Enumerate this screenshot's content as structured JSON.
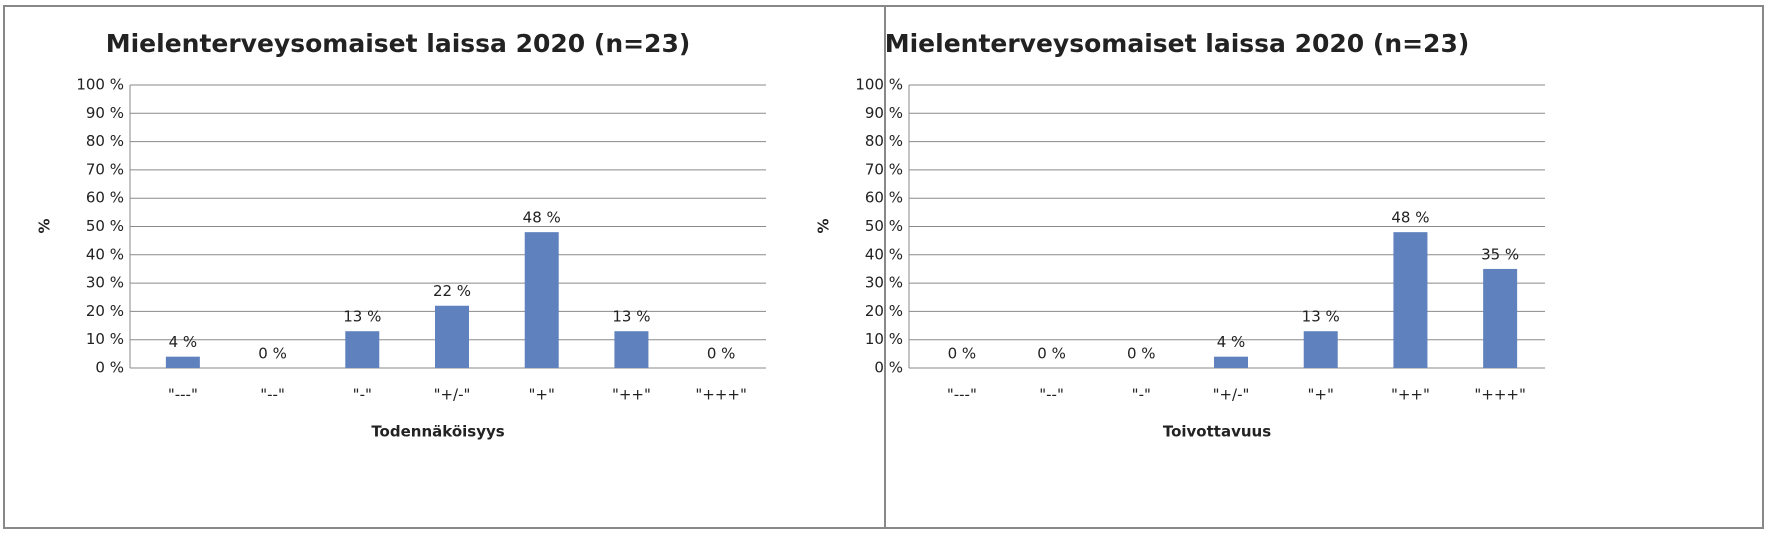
{
  "chart_data": [
    {
      "type": "bar",
      "title": "Mielenterveysomaiset laissa 2020 (n=23)",
      "x_label": "Todennäköisyys",
      "y_label": "%",
      "categories": [
        "\"---\"",
        "\"--\"",
        "\"-\"",
        "\"+/-\"",
        "\"+\"",
        "\"++\"",
        "\"+++\""
      ],
      "values": [
        4,
        0,
        13,
        22,
        48,
        13,
        0
      ],
      "value_labels": [
        "4 %",
        "0 %",
        "13 %",
        "22 %",
        "48 %",
        "13 %",
        "0 %"
      ],
      "color": "#5f81bd",
      "ylim": [
        0,
        100
      ],
      "yticks": [
        {
          "value": 0,
          "label": "0 %"
        },
        {
          "value": 10,
          "label": "10 %"
        },
        {
          "value": 20,
          "label": "20 %"
        },
        {
          "value": 30,
          "label": "30 %"
        },
        {
          "value": 40,
          "label": "40 %"
        },
        {
          "value": 50,
          "label": "50 %"
        },
        {
          "value": 60,
          "label": "60 %"
        },
        {
          "value": 70,
          "label": "70 %"
        },
        {
          "value": 80,
          "label": "80 %"
        },
        {
          "value": 90,
          "label": "90 %"
        },
        {
          "value": 100,
          "label": "100 %"
        }
      ],
      "grid": true
    },
    {
      "type": "bar",
      "title": "Mielenterveysomaiset laissa 2020 (n=23)",
      "x_label": "Toivottavuus",
      "y_label": "%",
      "categories": [
        "\"---\"",
        "\"--\"",
        "\"-\"",
        "\"+/-\"",
        "\"+\"",
        "\"++\"",
        "\"+++\""
      ],
      "values": [
        0,
        0,
        0,
        4,
        13,
        48,
        35
      ],
      "value_labels": [
        "0 %",
        "0 %",
        "0 %",
        "4 %",
        "13 %",
        "48 %",
        "35 %"
      ],
      "color": "#5f81bd",
      "ylim": [
        0,
        100
      ],
      "yticks": [
        {
          "value": 0,
          "label": "0 %"
        },
        {
          "value": 10,
          "label": "10 %"
        },
        {
          "value": 20,
          "label": "20 %"
        },
        {
          "value": 30,
          "label": "30 %"
        },
        {
          "value": 40,
          "label": "40 %"
        },
        {
          "value": 50,
          "label": "50 %"
        },
        {
          "value": 60,
          "label": "60 %"
        },
        {
          "value": 70,
          "label": "70 %"
        },
        {
          "value": 80,
          "label": "80 %"
        },
        {
          "value": 90,
          "label": "90 %"
        },
        {
          "value": 100,
          "label": "100 %"
        }
      ],
      "grid": true
    }
  ]
}
